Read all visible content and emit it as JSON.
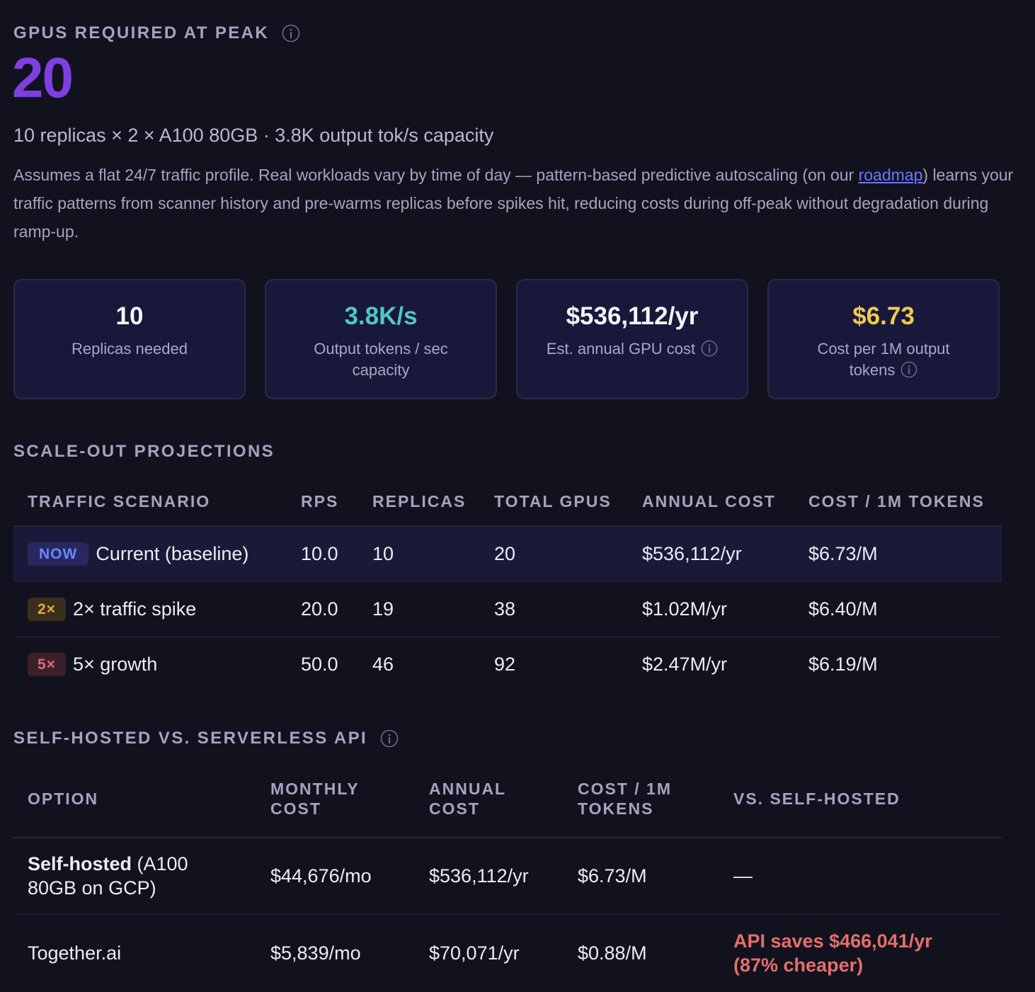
{
  "peak": {
    "label": "GPUS REQUIRED AT PEAK",
    "value": "20",
    "subtitle": "10 replicas × 2 × A100 80GB · 3.8K output tok/s capacity",
    "description_before": "Assumes a flat 24/7 traffic profile. Real workloads vary by time of day — pattern-based predictive autoscaling (on our ",
    "description_link": "roadmap",
    "description_after": ") learns your traffic patterns from scanner history and pre-warms replicas before spikes hit, reducing costs during off-peak without degradation during ramp-up."
  },
  "stats": [
    {
      "value": "10",
      "label": "Replicas needed",
      "color": "#f4f4fa"
    },
    {
      "value": "3.8K/s",
      "label": "Output tokens / sec capacity",
      "color": "#4fc8c0"
    },
    {
      "value": "$536,112/yr",
      "label": "Est. annual GPU cost",
      "color": "#f4f4fa",
      "icon": "info-icon"
    },
    {
      "value": "$6.73",
      "label": "Cost per 1M output tokens",
      "color": "#f2c94c",
      "icon": "info-icon"
    }
  ],
  "scale_out": {
    "title": "SCALE-OUT PROJECTIONS",
    "headers": [
      "TRAFFIC SCENARIO",
      "RPS",
      "REPLICAS",
      "TOTAL GPUS",
      "ANNUAL COST",
      "COST / 1M TOKENS"
    ],
    "rows": [
      {
        "badge": "NOW",
        "scenario": "Current (baseline)",
        "rps": "10.0",
        "replicas": "10",
        "gpus": "20",
        "annual": "$536,112/yr",
        "per_m": "$6.73/M"
      },
      {
        "badge": "2×",
        "scenario": "2× traffic spike",
        "rps": "20.0",
        "replicas": "19",
        "gpus": "38",
        "annual": "$1.02M/yr",
        "per_m": "$6.40/M"
      },
      {
        "badge": "5×",
        "scenario": "5× growth",
        "rps": "50.0",
        "replicas": "46",
        "gpus": "92",
        "annual": "$2.47M/yr",
        "per_m": "$6.19/M"
      }
    ]
  },
  "api_compare": {
    "title": "SELF-HOSTED VS. SERVERLESS API",
    "headers": [
      "OPTION",
      "MONTHLY COST",
      "ANNUAL COST",
      "COST / 1M TOKENS",
      "VS. SELF-HOSTED"
    ],
    "rows": [
      {
        "option_bold": "Self-hosted",
        "option_rest": " (A100 80GB on GCP)",
        "monthly": "$44,676/mo",
        "annual": "$536,112/yr",
        "per_m": "$6.73/M",
        "vs": "—"
      },
      {
        "option": "Together.ai",
        "monthly": "$5,839/mo",
        "annual": "$70,071/yr",
        "per_m": "$0.88/M",
        "vs": "API saves $466,041/yr (87% cheaper)"
      }
    ]
  },
  "colors": {
    "accent_purple": "#7e3fe0",
    "teal": "#4fc8c0",
    "gold": "#f2c94c",
    "savings_red": "#e2706a",
    "link_blue": "#6b77ff"
  }
}
